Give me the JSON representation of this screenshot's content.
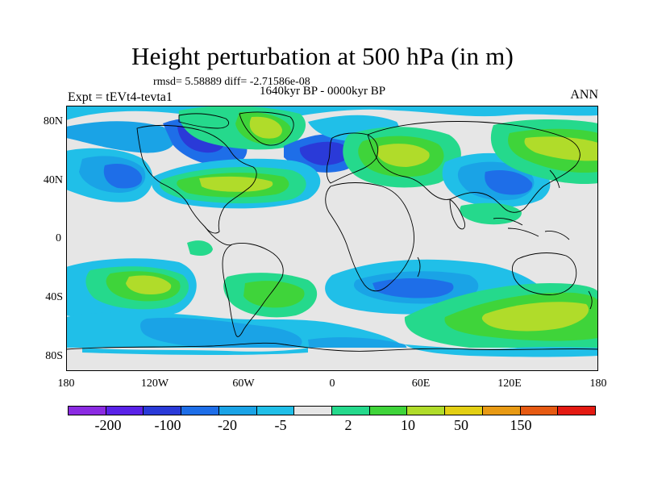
{
  "title": "Height perturbation at 500 hPa (in m)",
  "stats": "rmsd= 5.58889 diff= -2.71586e-08",
  "experiment": "Expt = tEVt4-tevta1",
  "period": "1640kyr BP - 0000kyr BP",
  "season": "ANN",
  "latitude_labels": [
    "80N",
    "40N",
    "0",
    "40S",
    "80S"
  ],
  "longitude_labels": [
    "180",
    "120W",
    "60W",
    "0",
    "60E",
    "120E",
    "180"
  ],
  "colorbar": {
    "colors": [
      "#8b2be2",
      "#5a22e8",
      "#2a3ad8",
      "#1e6ee8",
      "#1aa3e6",
      "#20bfe8",
      "#e6e6e6",
      "#25d98c",
      "#3fd43a",
      "#b0dc2a",
      "#e3cf14",
      "#e89a14",
      "#e65a12",
      "#e41a12"
    ],
    "labels": [
      "-200",
      "-100",
      "-20",
      "-5",
      "2",
      "10",
      "50",
      "150"
    ]
  },
  "map_colors": {
    "background": "#e6e6e6",
    "blue_dark": "#2a3ad8",
    "blue_mid": "#1e6ee8",
    "blue_light": "#1aa3e6",
    "cyan": "#20bfe8",
    "teal": "#25d98c",
    "green": "#3fd43a",
    "yellow_green": "#b0dc2a",
    "coast": "#000000"
  }
}
